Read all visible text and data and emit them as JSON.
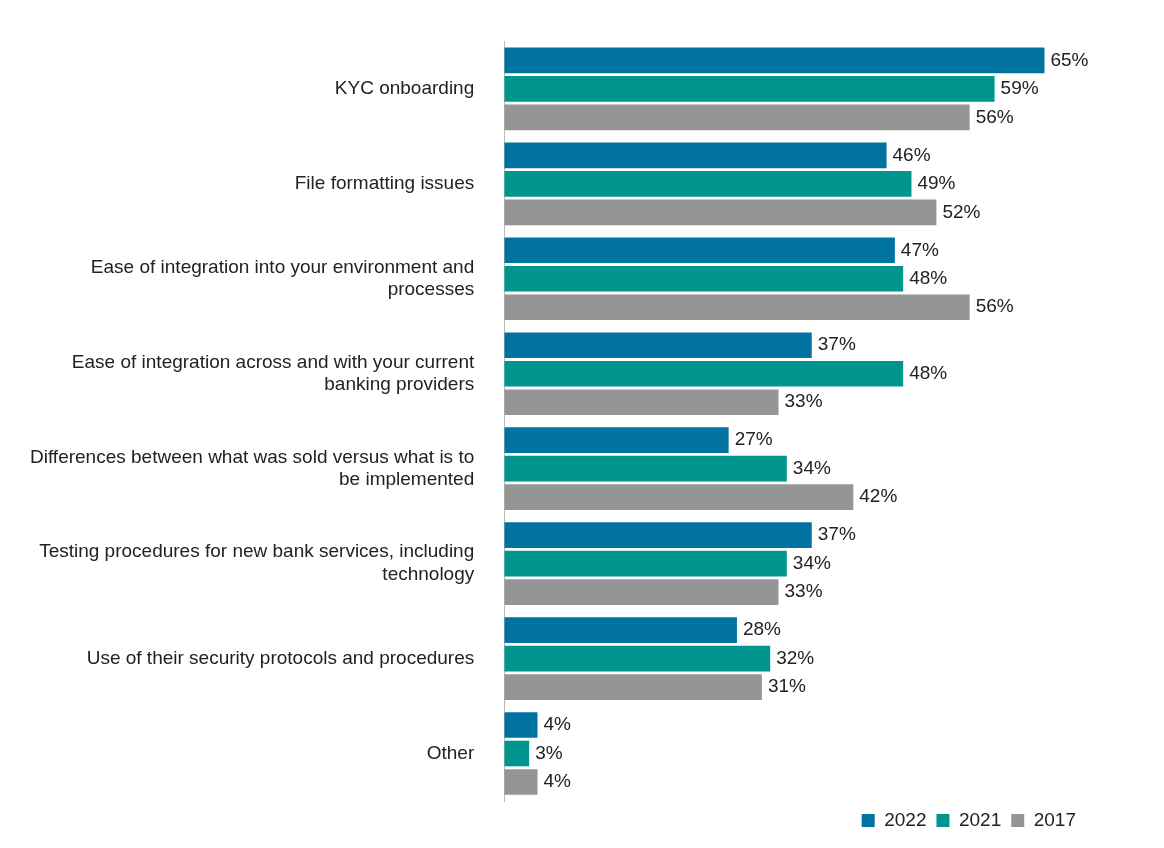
{
  "chart_data": {
    "type": "bar",
    "orientation": "horizontal",
    "categories": [
      "KYC onboarding",
      "File formatting issues",
      "Ease of integration into your environment and processes",
      "Ease of integration across and with your current banking providers",
      "Differences between what was sold versus what is to be implemented",
      "Testing procedures for new bank services, including technology",
      "Use of their security protocols and procedures",
      "Other"
    ],
    "series": [
      {
        "name": "2022",
        "color": "#0073a0",
        "values": [
          65,
          46,
          47,
          37,
          27,
          37,
          28,
          4
        ],
        "value_labels": [
          "65%",
          "46%",
          "47%",
          "37%",
          "27%",
          "37%",
          "28%",
          "4%"
        ]
      },
      {
        "name": "2021",
        "color": "#00968f",
        "values": [
          59,
          49,
          48,
          48,
          34,
          34,
          32,
          3
        ],
        "value_labels": [
          "59%",
          "49%",
          "48%",
          "48%",
          "34%",
          "34%",
          "32%",
          "3%"
        ]
      },
      {
        "name": "2017",
        "color": "#959595",
        "values": [
          56,
          52,
          56,
          33,
          42,
          33,
          31,
          4
        ],
        "value_labels": [
          "56%",
          "52%",
          "56%",
          "33%",
          "42%",
          "33%",
          "31%",
          "4%"
        ]
      }
    ],
    "legend": "bottom right"
  }
}
